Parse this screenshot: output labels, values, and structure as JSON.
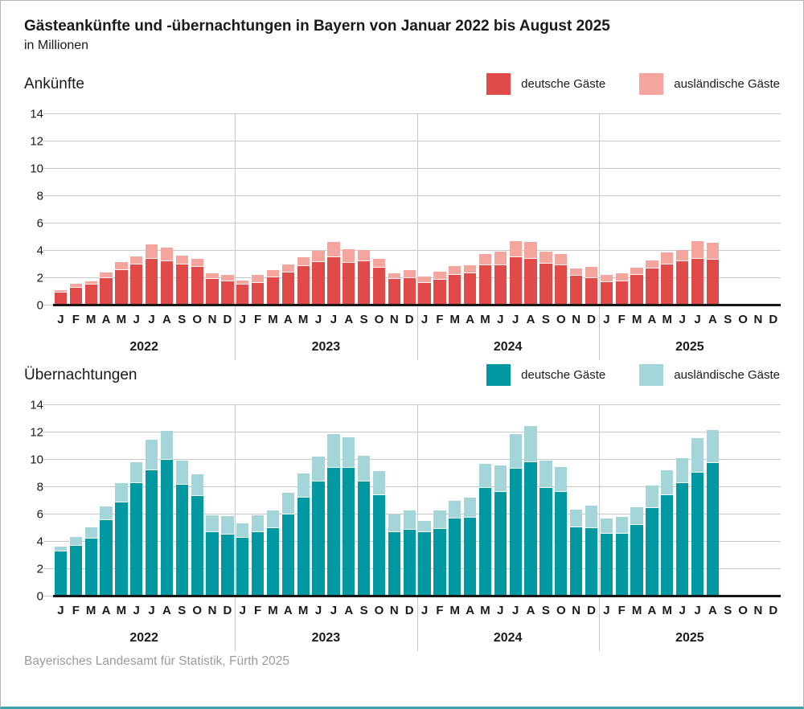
{
  "title": "Gästeankünfte und -übernachtungen in Bayern von Januar 2022 bis August 2025",
  "subtitle": "in Millionen",
  "source": "Bayerisches Landesamt für Statistik, Fürth 2025",
  "colors": {
    "domestic_red": "#e04b4a",
    "foreign_pink": "#f4a69e",
    "domestic_teal": "#0099a2",
    "foreign_lightteal": "#a3d5d9",
    "grid": "#c9c9c9",
    "axis": "#161616",
    "footer_text": "#9b9b9b",
    "accent_bottom_bar": "#3aa2aa"
  },
  "chart_data": [
    {
      "type": "bar",
      "stacked": true,
      "section_title": "Ankünfte",
      "unit": "in Millionen",
      "ylim": [
        0,
        14
      ],
      "ytick_step": 2,
      "grid": true,
      "legend_position": "top-right",
      "years": [
        "2022",
        "2023",
        "2024",
        "2025"
      ],
      "month_letters": [
        "J",
        "F",
        "M",
        "A",
        "M",
        "J",
        "J",
        "A",
        "S",
        "O",
        "N",
        "D"
      ],
      "note": "monthly values Jan 2022 - Aug 2025, Sep-Dec 2025 empty",
      "series": [
        {
          "name": "deutsche Gäste",
          "color": "#e04b4a",
          "values": [
            0.95,
            1.3,
            1.5,
            2.0,
            2.6,
            3.0,
            3.4,
            3.25,
            3.0,
            2.8,
            1.95,
            1.75,
            1.5,
            1.65,
            2.05,
            2.4,
            2.85,
            3.15,
            3.5,
            3.1,
            3.2,
            2.75,
            1.95,
            2.0,
            1.65,
            1.85,
            2.25,
            2.35,
            2.95,
            2.95,
            3.5,
            3.4,
            3.05,
            2.9,
            2.15,
            2.0,
            1.7,
            1.75,
            2.2,
            2.7,
            3.0,
            3.2,
            3.4,
            3.35,
            null,
            null,
            null,
            null
          ]
        },
        {
          "name": "ausländische Gäste",
          "color": "#f4a69e",
          "values": [
            0.15,
            0.25,
            0.25,
            0.4,
            0.55,
            0.6,
            1.05,
            0.95,
            0.65,
            0.6,
            0.4,
            0.5,
            0.3,
            0.6,
            0.55,
            0.6,
            0.65,
            0.85,
            1.15,
            1.0,
            0.85,
            0.65,
            0.4,
            0.6,
            0.45,
            0.6,
            0.6,
            0.6,
            0.8,
            0.95,
            1.2,
            1.25,
            0.85,
            0.85,
            0.55,
            0.8,
            0.55,
            0.6,
            0.55,
            0.6,
            0.85,
            0.85,
            1.3,
            1.2,
            null,
            null,
            null,
            null
          ]
        }
      ]
    },
    {
      "type": "bar",
      "stacked": true,
      "section_title": "Übernachtungen",
      "unit": "in Millionen",
      "ylim": [
        0,
        14
      ],
      "ytick_step": 2,
      "grid": true,
      "legend_position": "top-right",
      "years": [
        "2022",
        "2023",
        "2024",
        "2025"
      ],
      "month_letters": [
        "J",
        "F",
        "M",
        "A",
        "M",
        "J",
        "J",
        "A",
        "S",
        "O",
        "N",
        "D"
      ],
      "note": "monthly values Jan 2022 - Aug 2025, Sep-Dec 2025 empty",
      "series": [
        {
          "name": "deutsche Gäste",
          "color": "#0099a2",
          "values": [
            3.3,
            3.7,
            4.25,
            5.55,
            6.85,
            8.3,
            9.2,
            10.0,
            8.15,
            7.35,
            4.7,
            4.5,
            4.3,
            4.7,
            5.0,
            6.0,
            7.25,
            8.4,
            9.4,
            9.4,
            8.4,
            7.4,
            4.7,
            4.85,
            4.7,
            4.95,
            5.7,
            5.75,
            7.9,
            7.65,
            9.35,
            9.8,
            7.9,
            7.65,
            5.05,
            5.0,
            4.6,
            4.6,
            5.25,
            6.45,
            7.4,
            8.3,
            9.05,
            9.75,
            null,
            null,
            null,
            null
          ]
        },
        {
          "name": "ausländische Gäste",
          "color": "#a3d5d9",
          "values": [
            0.35,
            0.65,
            0.8,
            1.0,
            1.45,
            1.5,
            2.25,
            2.1,
            1.8,
            1.6,
            1.2,
            1.35,
            1.05,
            1.2,
            1.3,
            1.6,
            1.75,
            1.85,
            2.45,
            2.25,
            1.9,
            1.75,
            1.3,
            1.45,
            0.8,
            1.35,
            1.3,
            1.45,
            1.8,
            1.95,
            2.5,
            2.65,
            2.0,
            1.8,
            1.3,
            1.65,
            1.1,
            1.2,
            1.25,
            1.65,
            1.85,
            1.8,
            2.55,
            2.4,
            null,
            null,
            null,
            null
          ]
        }
      ]
    }
  ]
}
